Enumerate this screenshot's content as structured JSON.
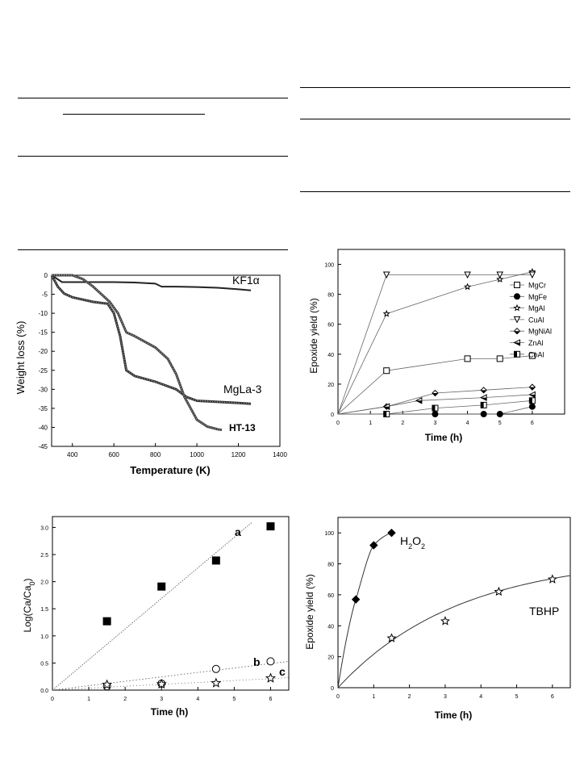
{
  "charts": [
    {
      "id": "tga",
      "type": "line",
      "xlabel": "Temperature (K)",
      "ylabel": "Weight loss (%)",
      "xlim": [
        300,
        1400
      ],
      "ylim": [
        -45,
        0
      ],
      "xticks": [
        400,
        600,
        800,
        1000,
        1200,
        1400
      ],
      "yticks": [
        0,
        -5,
        -10,
        -15,
        -20,
        -25,
        -30,
        -35,
        -40,
        -45
      ],
      "series": [
        {
          "name": "KF1α",
          "x": [
            300,
            350,
            400,
            500,
            600,
            700,
            800,
            830,
            900,
            1000,
            1100,
            1200,
            1260
          ],
          "y": [
            0,
            -1.8,
            -1.8,
            -1.8,
            -1.8,
            -1.9,
            -2.2,
            -3,
            -3,
            -3.1,
            -3.3,
            -3.7,
            -4
          ]
        },
        {
          "name": "MgLa-3",
          "x": [
            300,
            330,
            360,
            400,
            500,
            570,
            600,
            630,
            660,
            700,
            800,
            850,
            900,
            950,
            1000,
            1100,
            1200,
            1260
          ],
          "y": [
            0,
            -3,
            -4.8,
            -5.8,
            -7,
            -7.5,
            -10,
            -16,
            -25,
            -26.5,
            -28,
            -29,
            -30,
            -32,
            -33,
            -33.3,
            -33.6,
            -33.8
          ]
        },
        {
          "name": "HT-13",
          "x": [
            300,
            400,
            450,
            500,
            580,
            620,
            660,
            700,
            800,
            860,
            900,
            940,
            1000,
            1050,
            1100,
            1120
          ],
          "y": [
            0,
            0,
            -1,
            -3,
            -7,
            -10,
            -15,
            -16,
            -19,
            -22,
            -26,
            -32,
            -38,
            -39.8,
            -40.5,
            -40.7
          ]
        }
      ]
    },
    {
      "id": "catalysts",
      "type": "line",
      "xlabel": "Time (h)",
      "ylabel": "Epoxide yield (%)",
      "xlim": [
        0,
        7
      ],
      "ylim": [
        0,
        110
      ],
      "xticks": [
        0,
        1,
        2,
        3,
        4,
        5,
        6
      ],
      "yticks": [
        0,
        20,
        40,
        60,
        80,
        100
      ],
      "legend_position": "right",
      "series": [
        {
          "name": "MgCr",
          "marker": "square-open",
          "x": [
            0,
            1.5,
            4,
            5,
            6
          ],
          "y": [
            0,
            29,
            37,
            37,
            39
          ]
        },
        {
          "name": "MgFe",
          "marker": "circle-filled",
          "x": [
            0,
            1.5,
            3,
            4.5,
            5,
            6
          ],
          "y": [
            0,
            0,
            0,
            0,
            0,
            5
          ]
        },
        {
          "name": "MgAl",
          "marker": "star-open",
          "x": [
            0,
            1.5,
            4,
            5,
            6
          ],
          "y": [
            0,
            67,
            85,
            90,
            95
          ]
        },
        {
          "name": "CuAl",
          "marker": "triangle-down-open",
          "x": [
            0,
            1.5,
            4,
            5,
            6
          ],
          "y": [
            0,
            93,
            93,
            93,
            93
          ]
        },
        {
          "name": "MgNiAl",
          "marker": "diamond-half",
          "x": [
            0,
            1.5,
            3,
            4.5,
            6
          ],
          "y": [
            0,
            5,
            14,
            16,
            18
          ]
        },
        {
          "name": "ZnAl",
          "marker": "triangle-left-half",
          "x": [
            0,
            1.5,
            2.5,
            4.5,
            6
          ],
          "y": [
            0,
            5,
            9,
            11,
            13
          ]
        },
        {
          "name": "CoAl",
          "marker": "square-half",
          "x": [
            0,
            1.5,
            3,
            4.5,
            6
          ],
          "y": [
            0,
            0,
            4,
            6,
            9
          ]
        }
      ]
    },
    {
      "id": "kinetics",
      "type": "scatter",
      "xlabel": "Time (h)",
      "ylabel": "Log(Ca/Ca",
      "ylabel_sub": "0",
      "ylabel_close": ")",
      "xlim": [
        0,
        6.5
      ],
      "ylim": [
        0,
        3.2
      ],
      "xticks": [
        0,
        1,
        2,
        3,
        4,
        5,
        6
      ],
      "yticks": [
        0.0,
        0.5,
        1.0,
        1.5,
        2.0,
        2.5,
        3.0
      ],
      "series": [
        {
          "name": "a",
          "marker": "square-filled",
          "x": [
            0,
            1.5,
            3,
            4.5,
            6
          ],
          "y": [
            0,
            1.27,
            1.91,
            2.39,
            3.02
          ],
          "fit": [
            [
              0,
              0
            ],
            [
              5.5,
              3.1
            ]
          ]
        },
        {
          "name": "b",
          "marker": "circle-open",
          "x": [
            0,
            1.5,
            3,
            4.5,
            6
          ],
          "y": [
            0,
            0.07,
            0.12,
            0.39,
            0.53
          ],
          "fit": [
            [
              0,
              0
            ],
            [
              6.5,
              0.53
            ]
          ]
        },
        {
          "name": "c",
          "marker": "star-open",
          "x": [
            0,
            1.5,
            3,
            4.5,
            6
          ],
          "y": [
            0,
            0.1,
            0.11,
            0.13,
            0.22
          ],
          "fit": [
            [
              0,
              0
            ],
            [
              6.5,
              0.23
            ]
          ]
        }
      ]
    },
    {
      "id": "oxidants",
      "type": "scatter",
      "xlabel": "Time (h)",
      "ylabel": "Epoxide yield (%)",
      "xlim": [
        0,
        6.5
      ],
      "ylim": [
        0,
        110
      ],
      "xticks": [
        0,
        1,
        2,
        3,
        4,
        5,
        6
      ],
      "yticks": [
        0,
        20,
        40,
        60,
        80,
        100
      ],
      "series": [
        {
          "name": "H2O2",
          "label_main": "H",
          "label_sub1": "2",
          "label_mid": "O",
          "label_sub2": "2",
          "marker": "diamond-filled",
          "x": [
            0,
            0.5,
            1,
            1.5
          ],
          "y": [
            0,
            57,
            92,
            100
          ]
        },
        {
          "name": "TBHP",
          "marker": "star-open",
          "x": [
            0,
            1.5,
            3,
            4.5,
            6
          ],
          "y": [
            0,
            32,
            43,
            62,
            70
          ]
        }
      ]
    }
  ]
}
